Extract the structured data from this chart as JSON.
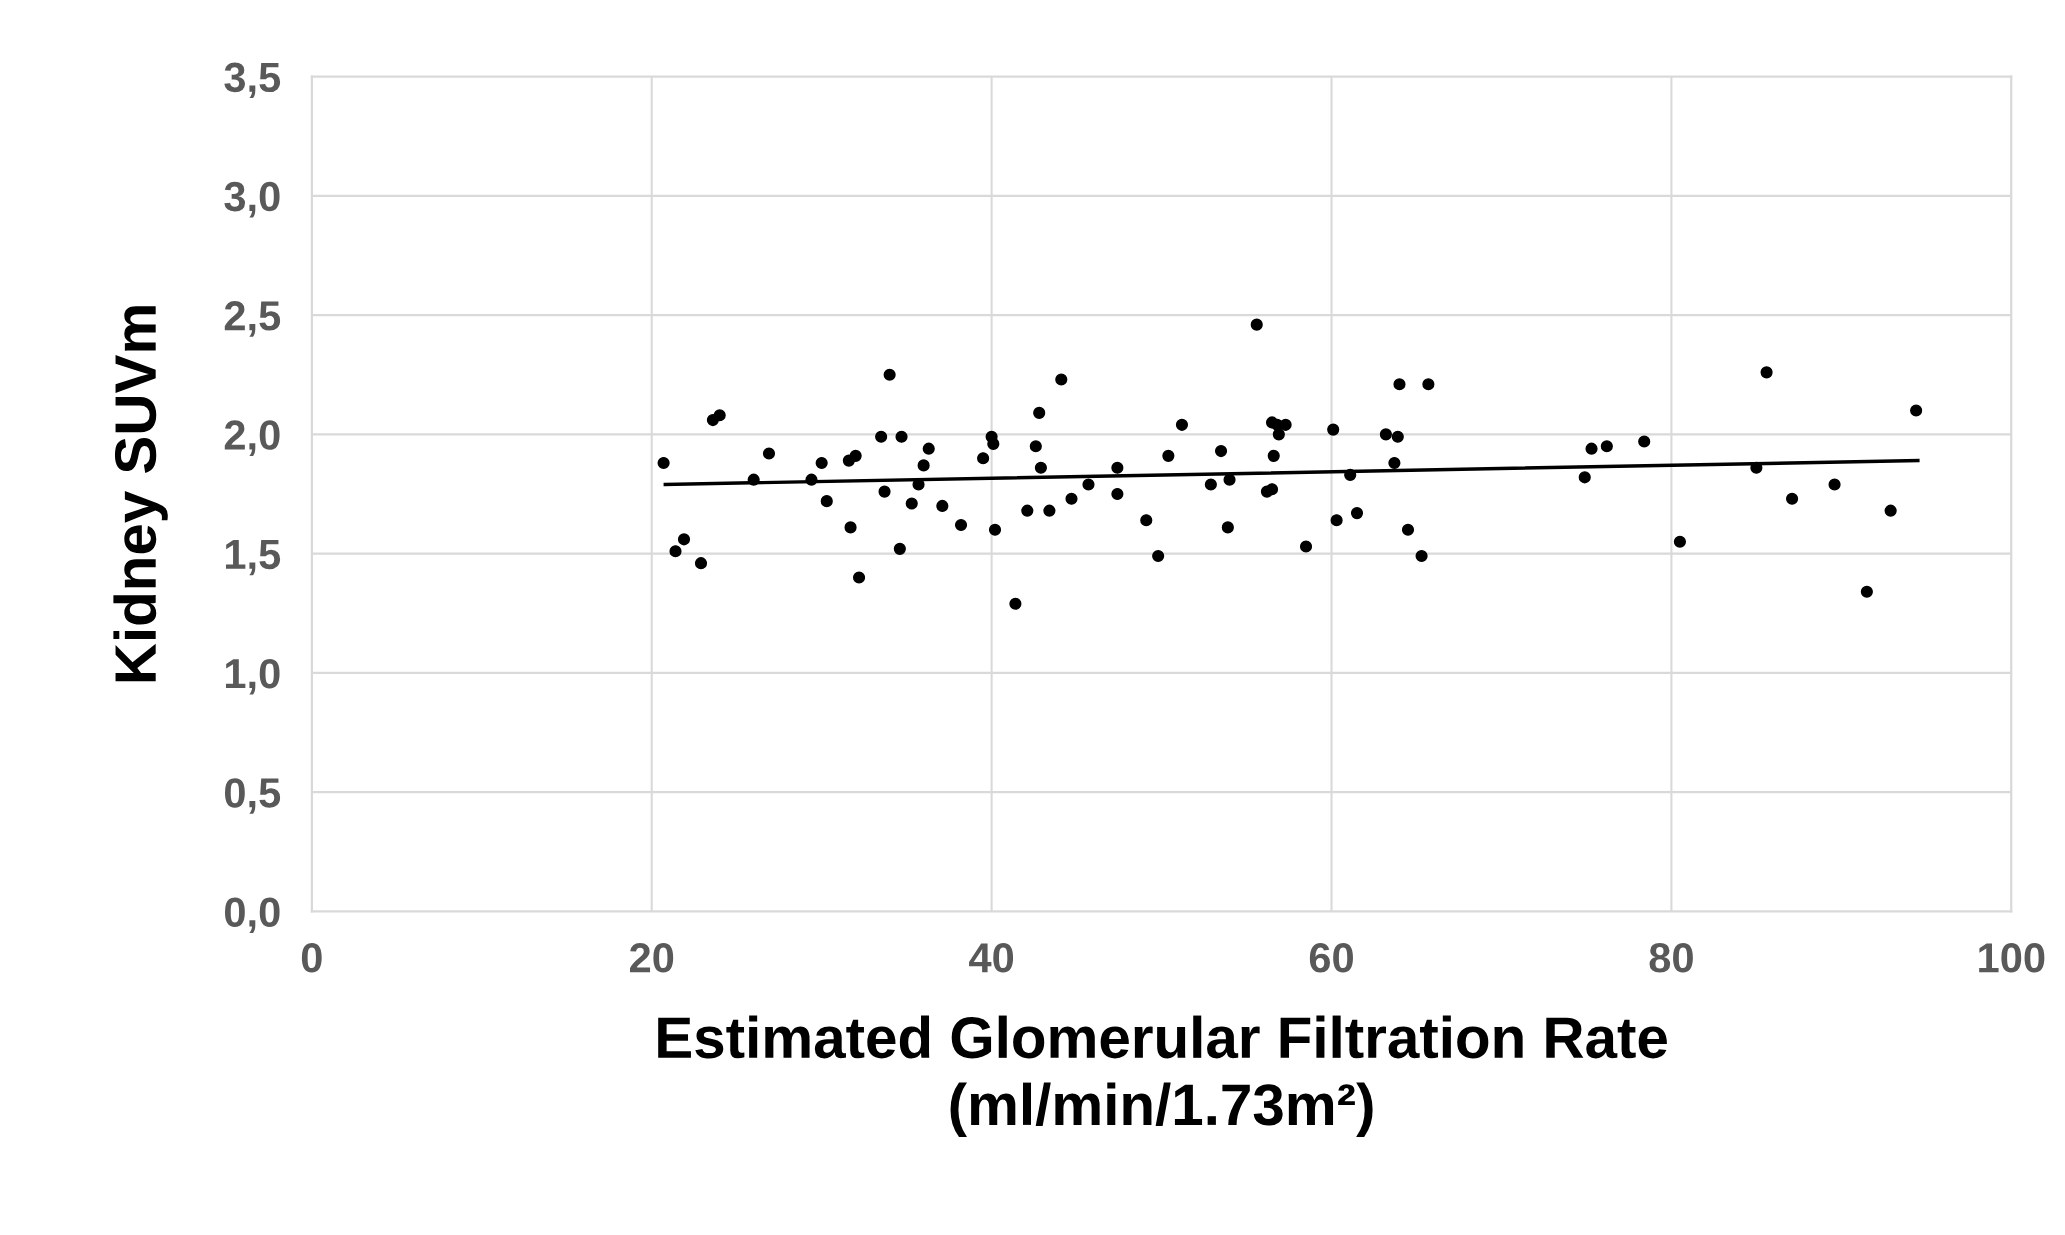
{
  "chart_data": {
    "type": "scatter",
    "xlabel": "Estimated Glomerular Filtration Rate\n(ml/min/1.73m²)",
    "ylabel": "Kidney SUVm",
    "xlim": [
      0,
      100
    ],
    "xticks": [
      0,
      20,
      40,
      60,
      80,
      100
    ],
    "ylim": [
      0,
      3.5
    ],
    "yticks": [
      {
        "value": 0,
        "label": "0,0"
      },
      {
        "value": 0.5,
        "label": "0,5"
      },
      {
        "value": 1,
        "label": "1,0"
      },
      {
        "value": 1.5,
        "label": "1,5"
      },
      {
        "value": 2,
        "label": "2,0"
      },
      {
        "value": 2.5,
        "label": "2,5"
      },
      {
        "value": 3,
        "label": "3,0"
      },
      {
        "value": 3.5,
        "label": "3,5"
      }
    ],
    "grid": true,
    "series": [
      {
        "color": "#000000",
        "marker": "circle",
        "x": [
          20.7,
          21.4,
          21.9,
          22.9,
          23.6,
          24.0,
          26.0,
          26.9,
          29.4,
          30.0,
          30.3,
          31.6,
          32.0,
          31.7,
          32.2,
          33.5,
          33.7,
          34.0,
          34.7,
          34.6,
          35.3,
          35.7,
          36.0,
          36.3,
          37.1,
          38.2,
          39.5,
          40.0,
          40.1,
          40.2,
          41.4,
          42.1,
          42.6,
          42.8,
          42.9,
          43.4,
          44.1,
          44.7,
          45.7,
          47.4,
          47.4,
          49.1,
          49.8,
          50.4,
          51.2,
          52.9,
          53.5,
          54.0,
          53.9,
          55.6,
          56.2,
          56.5,
          56.5,
          56.8,
          56.6,
          56.9,
          57.3,
          58.5,
          60.1,
          60.3,
          61.1,
          61.5,
          63.2,
          64.0,
          63.9,
          63.7,
          64.5,
          65.3,
          65.7,
          74.9,
          75.3,
          76.2,
          78.4,
          80.5,
          85.0,
          85.6,
          87.1,
          89.6,
          91.5,
          92.9,
          94.4
        ],
        "values": [
          1.88,
          1.51,
          1.56,
          1.46,
          2.06,
          2.08,
          1.81,
          1.92,
          1.81,
          1.88,
          1.72,
          1.89,
          1.91,
          1.61,
          1.4,
          1.99,
          1.76,
          2.25,
          1.99,
          1.52,
          1.71,
          1.79,
          1.87,
          1.94,
          1.7,
          1.62,
          1.9,
          1.99,
          1.96,
          1.6,
          1.29,
          1.68,
          1.95,
          2.09,
          1.86,
          1.68,
          2.23,
          1.73,
          1.79,
          1.86,
          1.75,
          1.64,
          1.49,
          1.91,
          2.04,
          1.79,
          1.93,
          1.81,
          1.61,
          2.46,
          1.76,
          1.77,
          2.05,
          2.04,
          1.91,
          2.0,
          2.04,
          1.53,
          2.02,
          1.64,
          1.83,
          1.67,
          2.0,
          2.21,
          1.99,
          1.88,
          1.6,
          1.49,
          2.21,
          1.82,
          1.94,
          1.95,
          1.97,
          1.55,
          1.86,
          2.26,
          1.73,
          1.79,
          1.34,
          1.68,
          2.1
        ]
      },
      {
        "type": "line",
        "color": "#000000",
        "line_style": "solid",
        "marker": "none",
        "x": [
          20.8,
          94.5
        ],
        "values": [
          1.79,
          1.89
        ]
      }
    ]
  }
}
